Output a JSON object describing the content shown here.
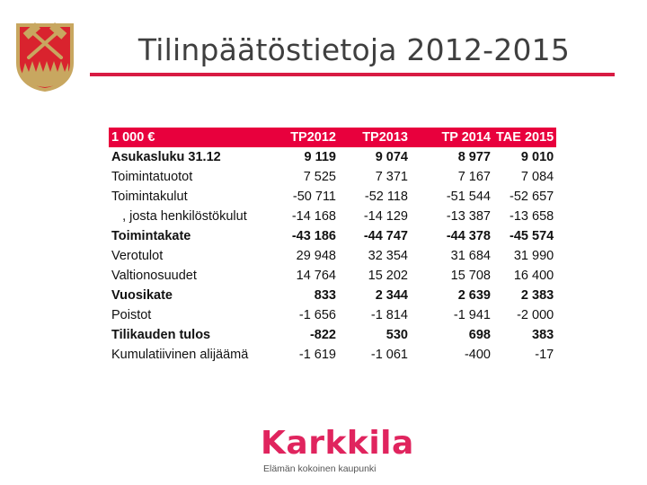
{
  "title": "Tilinpäätöstietoja 2012-2015",
  "table": {
    "headers": [
      "1 000 €",
      "TP2012",
      "TP2013",
      "TP 2014",
      "TAE 2015"
    ],
    "rows": [
      {
        "label": "Asukasluku 31.12",
        "values": [
          "9 119",
          "9 074",
          "8 977",
          "9 010"
        ],
        "bold": true
      },
      {
        "label": "Toimintatuotot",
        "values": [
          "7 525",
          "7 371",
          "7 167",
          "7 084"
        ],
        "bold": false
      },
      {
        "label": "Toimintakulut",
        "values": [
          "-50 711",
          "-52 118",
          "-51 544",
          "-52 657"
        ],
        "bold": false
      },
      {
        "label": "   , josta henkilöstökulut",
        "values": [
          "-14 168",
          "-14 129",
          "-13 387",
          "-13 658"
        ],
        "bold": false
      },
      {
        "label": "Toimintakate",
        "values": [
          "-43 186",
          "-44 747",
          "-44 378",
          "-45 574"
        ],
        "bold": true
      },
      {
        "label": "Verotulot",
        "values": [
          "29 948",
          "32 354",
          "31 684",
          "31 990"
        ],
        "bold": false
      },
      {
        "label": "Valtionosuudet",
        "values": [
          "14 764",
          "15 202",
          "15 708",
          "16 400"
        ],
        "bold": false
      },
      {
        "label": "Vuosikate",
        "values": [
          "833",
          "2 344",
          "2 639",
          "2 383"
        ],
        "bold": true
      },
      {
        "label": "Poistot",
        "values": [
          "-1 656",
          "-1 814",
          "-1 941",
          "-2 000"
        ],
        "bold": false
      },
      {
        "label": "Tilikauden tulos",
        "values": [
          "-822",
          "530",
          "698",
          "383"
        ],
        "bold": true
      },
      {
        "label": "Kumulatiivinen alijäämä",
        "values": [
          "-1 619",
          "-1 061",
          "-400",
          "-17"
        ],
        "bold": false
      }
    ]
  },
  "logo": {
    "word": "Karkkila",
    "tagline": "Elämän kokoinen kaupunki"
  },
  "colors": {
    "accent": "#e8003d",
    "rule": "#d81b43",
    "crest_red": "#d9232e",
    "crest_gold": "#c8a760"
  }
}
